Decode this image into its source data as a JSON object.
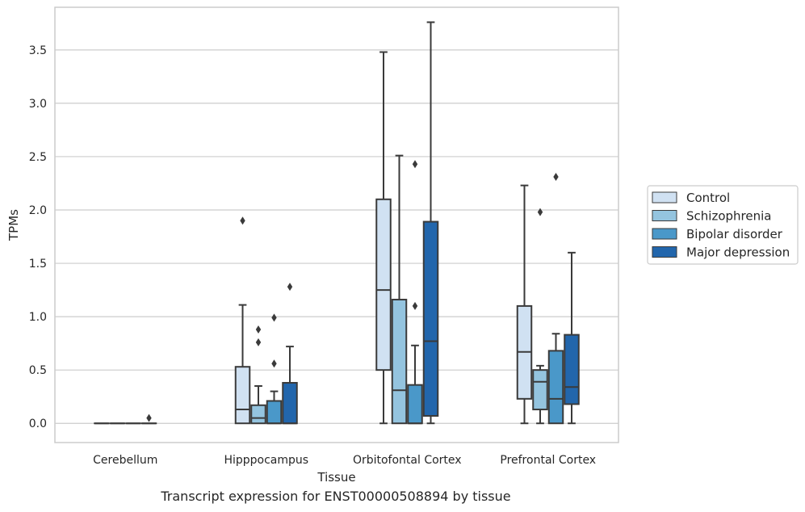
{
  "caption": "Transcript expression for ENST00000508894 by tissue",
  "colors": {
    "Control": "#d0e1f2",
    "Schizophrenia": "#94c4df",
    "Bipolar disorder": "#4a98c9",
    "Major depression": "#2266ac",
    "grid": "#cccccc",
    "line": "#3a3a3a"
  },
  "chart_data": {
    "type": "box",
    "xlabel": "Tissue",
    "ylabel": "TPMs",
    "ylim": [
      -0.18,
      3.9
    ],
    "yticks": [
      0.0,
      0.5,
      1.0,
      1.5,
      2.0,
      2.5,
      3.0,
      3.5
    ],
    "ytick_labels": [
      "0.0",
      "0.5",
      "1.0",
      "1.5",
      "2.0",
      "2.5",
      "3.0",
      "3.5"
    ],
    "grid": true,
    "legend_position": "right",
    "categories": [
      "Cerebellum",
      "Hipppocampus",
      "Orbitofontal Cortex",
      "Prefrontal Cortex"
    ],
    "series": [
      {
        "name": "Control",
        "boxes": [
          {
            "whislo": 0.0,
            "q1": 0.0,
            "med": 0.0,
            "q3": 0.0,
            "whishi": 0.0,
            "fliers": []
          },
          {
            "whislo": 0.0,
            "q1": 0.0,
            "med": 0.13,
            "q3": 0.53,
            "whishi": 1.11,
            "fliers": [
              1.9
            ]
          },
          {
            "whislo": 0.0,
            "q1": 0.5,
            "med": 1.25,
            "q3": 2.1,
            "whishi": 3.48,
            "fliers": []
          },
          {
            "whislo": 0.0,
            "q1": 0.23,
            "med": 0.67,
            "q3": 1.1,
            "whishi": 2.23,
            "fliers": []
          }
        ]
      },
      {
        "name": "Schizophrenia",
        "boxes": [
          {
            "whislo": 0.0,
            "q1": 0.0,
            "med": 0.0,
            "q3": 0.0,
            "whishi": 0.0,
            "fliers": []
          },
          {
            "whislo": 0.0,
            "q1": 0.0,
            "med": 0.05,
            "q3": 0.17,
            "whishi": 0.35,
            "fliers": [
              0.76,
              0.88
            ]
          },
          {
            "whislo": 0.0,
            "q1": 0.0,
            "med": 0.31,
            "q3": 1.16,
            "whishi": 2.51,
            "fliers": []
          },
          {
            "whislo": 0.0,
            "q1": 0.13,
            "med": 0.39,
            "q3": 0.5,
            "whishi": 0.54,
            "fliers": [
              1.98
            ]
          }
        ]
      },
      {
        "name": "Bipolar disorder",
        "boxes": [
          {
            "whislo": 0.0,
            "q1": 0.0,
            "med": 0.0,
            "q3": 0.0,
            "whishi": 0.0,
            "fliers": []
          },
          {
            "whislo": 0.0,
            "q1": 0.0,
            "med": 0.0,
            "q3": 0.21,
            "whishi": 0.3,
            "fliers": [
              0.56,
              0.99
            ]
          },
          {
            "whislo": 0.0,
            "q1": 0.0,
            "med": 0.0,
            "q3": 0.36,
            "whishi": 0.73,
            "fliers": [
              1.1,
              2.43
            ]
          },
          {
            "whislo": 0.0,
            "q1": 0.0,
            "med": 0.23,
            "q3": 0.68,
            "whishi": 0.84,
            "fliers": [
              2.31
            ]
          }
        ]
      },
      {
        "name": "Major depression",
        "boxes": [
          {
            "whislo": 0.0,
            "q1": 0.0,
            "med": 0.0,
            "q3": 0.0,
            "whishi": 0.0,
            "fliers": [
              0.05
            ]
          },
          {
            "whislo": 0.0,
            "q1": 0.0,
            "med": 0.0,
            "q3": 0.38,
            "whishi": 0.72,
            "fliers": [
              1.28
            ]
          },
          {
            "whislo": 0.0,
            "q1": 0.07,
            "med": 0.77,
            "q3": 1.89,
            "whishi": 3.76,
            "fliers": []
          },
          {
            "whislo": 0.0,
            "q1": 0.18,
            "med": 0.34,
            "q3": 0.83,
            "whishi": 1.6,
            "fliers": []
          }
        ]
      }
    ]
  }
}
